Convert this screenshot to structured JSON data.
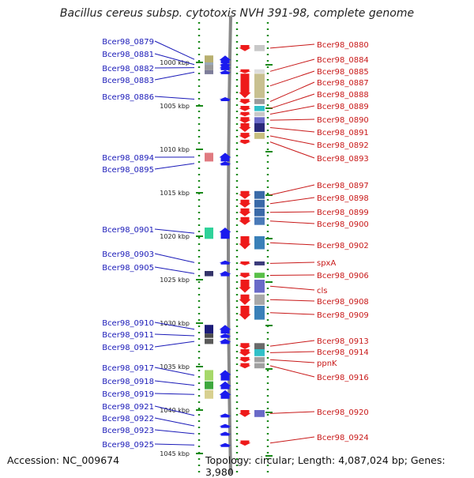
{
  "title": "Bacillus cereus subsp. cytotoxis NVH 391-98, complete genome",
  "footer": {
    "accession": "Accession: NC_009674",
    "stats": "Topology: circular; Length: 4,087,024 bp; Genes: 3,980"
  },
  "axis_unit": "kbp",
  "ticks": [
    {
      "label": "1000 kbp",
      "kb": 1000
    },
    {
      "label": "1005 kbp",
      "kb": 1005
    },
    {
      "label": "1010 kbp",
      "kb": 1010
    },
    {
      "label": "1015 kbp",
      "kb": 1015
    },
    {
      "label": "1020 kbp",
      "kb": 1020
    },
    {
      "label": "1025 kbp",
      "kb": 1025
    },
    {
      "label": "1030 kbp",
      "kb": 1030
    },
    {
      "label": "1035 kbp",
      "kb": 1035
    },
    {
      "label": "1040 kbp",
      "kb": 1040
    },
    {
      "label": "1045 kbp",
      "kb": 1045
    }
  ],
  "left_genes": [
    {
      "label": "Bcer98_0879",
      "kb": 999.2,
      "len": 0.9,
      "color": "#b8b070"
    },
    {
      "label": "Bcer98_0881",
      "kb": 1000.0,
      "len": 0.5,
      "color": "#9aa8b8"
    },
    {
      "label": "Bcer98_0882",
      "kb": 1000.3,
      "len": 0.6,
      "color": "#9a9a9a"
    },
    {
      "label": "Bcer98_0883",
      "kb": 1000.9,
      "len": 0.4,
      "color": "#7d7d9a"
    },
    {
      "label": "Bcer98_0886",
      "kb": 1004.0,
      "len": 0.3,
      "color": null
    },
    {
      "label": "Bcer98_0894",
      "kb": 1010.4,
      "len": 1.0,
      "color": "#e07a80"
    },
    {
      "label": "Bcer98_0895",
      "kb": 1011.4,
      "len": 0.3,
      "color": null
    },
    {
      "label": "Bcer98_0901",
      "kb": 1019.0,
      "len": 1.3,
      "color": "#2fd29a"
    },
    {
      "label": "Bcer98_0903",
      "kb": 1022.8,
      "len": 0.3,
      "color": null
    },
    {
      "label": "Bcer98_0905",
      "kb": 1024.0,
      "len": 0.6,
      "color": "#34346a"
    },
    {
      "label": "Bcer98_0910",
      "kb": 1030.2,
      "len": 1.0,
      "color": "#1c1c7a"
    },
    {
      "label": "Bcer98_0911",
      "kb": 1031.2,
      "len": 0.5,
      "color": "#4c4c4c"
    },
    {
      "label": "Bcer98_0912",
      "kb": 1031.8,
      "len": 0.6,
      "color": "#5a5a5a"
    },
    {
      "label": "Bcer98_0917",
      "kb": 1035.4,
      "len": 1.2,
      "color": "#a6d86a"
    },
    {
      "label": "Bcer98_0918",
      "kb": 1036.7,
      "len": 0.9,
      "color": "#3ea83e"
    },
    {
      "label": "Bcer98_0919",
      "kb": 1037.7,
      "len": 1.0,
      "color": "#d8d090"
    },
    {
      "label": "Bcer98_0921",
      "kb": 1040.4,
      "len": 0.3,
      "color": null
    },
    {
      "label": "Bcer98_0922",
      "kb": 1041.6,
      "len": 0.3,
      "color": null
    },
    {
      "label": "Bcer98_0923",
      "kb": 1042.5,
      "len": 0.3,
      "color": null
    },
    {
      "label": "Bcer98_0925",
      "kb": 1043.8,
      "len": 0.4,
      "color": null
    }
  ],
  "right_genes": [
    {
      "label": "Bcer98_0880",
      "kb": 998.0,
      "len": 0.7,
      "color": "#c8c8c8"
    },
    {
      "label": "Bcer98_0884",
      "kb": 1000.8,
      "len": 0.3,
      "color": "#dddddd"
    },
    {
      "label": "Bcer98_0885",
      "kb": 1001.3,
      "len": 2.8,
      "color": "#c8c090"
    },
    {
      "label": "Bcer98_0887",
      "kb": 1004.2,
      "len": 0.6,
      "color": "#9a9a9a"
    },
    {
      "label": "Bcer98_0888",
      "kb": 1005.0,
      "len": 0.6,
      "color": "#30c0c8"
    },
    {
      "label": "Bcer98_0889",
      "kb": 1005.7,
      "len": 0.5,
      "color": "#c8c8c8"
    },
    {
      "label": "Bcer98_0890",
      "kb": 1006.3,
      "len": 0.7,
      "color": "#6a6ac8"
    },
    {
      "label": "Bcer98_0891",
      "kb": 1007.0,
      "len": 1.0,
      "color": "#2a2a7a"
    },
    {
      "label": "Bcer98_0892",
      "kb": 1008.1,
      "len": 0.7,
      "color": "#c8c080"
    },
    {
      "label": "Bcer98_0893",
      "kb": 1008.9,
      "len": 0.5,
      "color": null
    },
    {
      "label": "Bcer98_0897",
      "kb": 1014.8,
      "len": 0.9,
      "color": "#3a6aa8"
    },
    {
      "label": "Bcer98_0898",
      "kb": 1015.8,
      "len": 0.9,
      "color": "#3a6aa8"
    },
    {
      "label": "Bcer98_0899",
      "kb": 1016.8,
      "len": 0.9,
      "color": "#3a6aa8"
    },
    {
      "label": "Bcer98_0900",
      "kb": 1017.8,
      "len": 0.9,
      "color": "#4a7ab8"
    },
    {
      "label": "Bcer98_0902",
      "kb": 1020.0,
      "len": 1.5,
      "color": "#3a80b8"
    },
    {
      "label": "spxA",
      "kb": 1022.9,
      "len": 0.4,
      "color": "#3a3a7a"
    },
    {
      "label": "Bcer98_0906",
      "kb": 1024.2,
      "len": 0.6,
      "color": "#58c048"
    },
    {
      "label": "cls",
      "kb": 1025.0,
      "len": 1.5,
      "color": "#6a6ac8"
    },
    {
      "label": "Bcer98_0908",
      "kb": 1026.7,
      "len": 1.2,
      "color": "#a8a8a8"
    },
    {
      "label": "Bcer98_0909",
      "kb": 1028.0,
      "len": 1.6,
      "color": "#3a80b8"
    },
    {
      "label": "Bcer98_0913",
      "kb": 1032.3,
      "len": 0.7,
      "color": "#6a6a6a"
    },
    {
      "label": "Bcer98_0914",
      "kb": 1033.0,
      "len": 0.8,
      "color": "#30c0c8"
    },
    {
      "label": "ppnK",
      "kb": 1033.9,
      "len": 0.6,
      "color": "#a0a0a0"
    },
    {
      "label": "Bcer98_0916",
      "kb": 1034.6,
      "len": 0.6,
      "color": "#a0a0a0"
    },
    {
      "label": "Bcer98_0920",
      "kb": 1040.0,
      "len": 0.8,
      "color": "#6a6ac8"
    },
    {
      "label": "Bcer98_0924",
      "kb": 1043.5,
      "len": 0.6,
      "color": null
    }
  ],
  "colors": {
    "forward_arrow": "#1a1aee",
    "reverse_arrow": "#ee1a1a",
    "left_label": "#1a1ab8",
    "right_label": "#c81818",
    "ruler": "#1a8a1a",
    "backbone": "#888888"
  }
}
